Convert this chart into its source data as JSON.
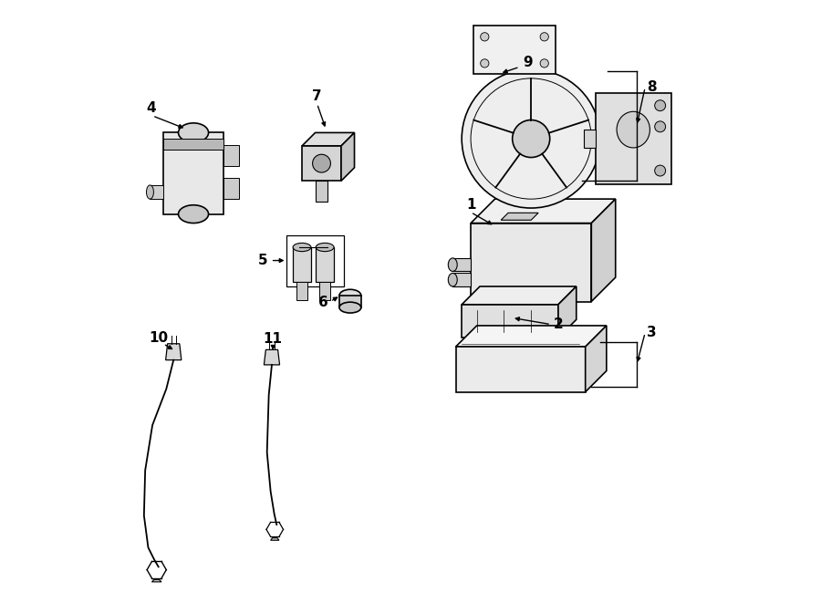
{
  "background_color": "#ffffff",
  "line_color": "#000000",
  "components": [
    {
      "id": 1
    },
    {
      "id": 2
    },
    {
      "id": 3
    },
    {
      "id": 4
    },
    {
      "id": 5
    },
    {
      "id": 6
    },
    {
      "id": 7
    },
    {
      "id": 8
    },
    {
      "id": 9
    },
    {
      "id": 10
    },
    {
      "id": 11
    }
  ]
}
